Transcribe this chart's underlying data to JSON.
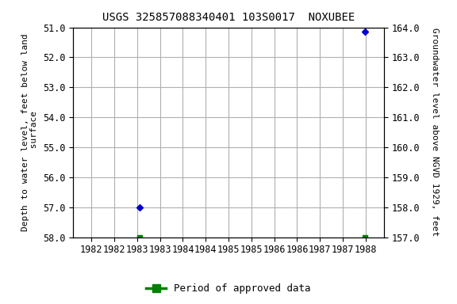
{
  "title": "USGS 325857088340401 103S0017  NOXUBEE",
  "ylabel_left": "Depth to water level, feet below land\n surface",
  "ylabel_right": "Groundwater level above NGVD 1929, feet",
  "ylim_left": [
    51.0,
    58.0
  ],
  "ylim_right": [
    157.0,
    164.0
  ],
  "xlim": [
    1981.6,
    1988.4
  ],
  "xtick_positions": [
    1982.0,
    1982.5,
    1983.0,
    1983.5,
    1984.0,
    1984.5,
    1985.0,
    1985.5,
    1986.0,
    1986.5,
    1987.0,
    1987.5,
    1988.0
  ],
  "xtick_labels": [
    "1982",
    "1982",
    "1983",
    "1983",
    "1984",
    "1984",
    "1985",
    "1985",
    "1986",
    "1986",
    "1987",
    "1987",
    "1988"
  ],
  "ytick_left": [
    51.0,
    52.0,
    53.0,
    54.0,
    55.0,
    56.0,
    57.0,
    58.0
  ],
  "ytick_right": [
    157.0,
    158.0,
    159.0,
    160.0,
    161.0,
    162.0,
    163.0,
    164.0
  ],
  "blue_points_x": [
    1983.05,
    1987.98
  ],
  "blue_points_y": [
    57.0,
    51.15
  ],
  "green_points_x": [
    1983.05,
    1987.98
  ],
  "green_points_y": [
    58.0,
    58.0
  ],
  "blue_color": "#0000CC",
  "green_color": "#008000",
  "background_color": "#ffffff",
  "plot_bg_color": "#ffffff",
  "grid_color": "#b0b0b0",
  "legend_label": "Period of approved data",
  "title_fontsize": 10,
  "axis_label_fontsize": 8,
  "tick_fontsize": 8.5
}
